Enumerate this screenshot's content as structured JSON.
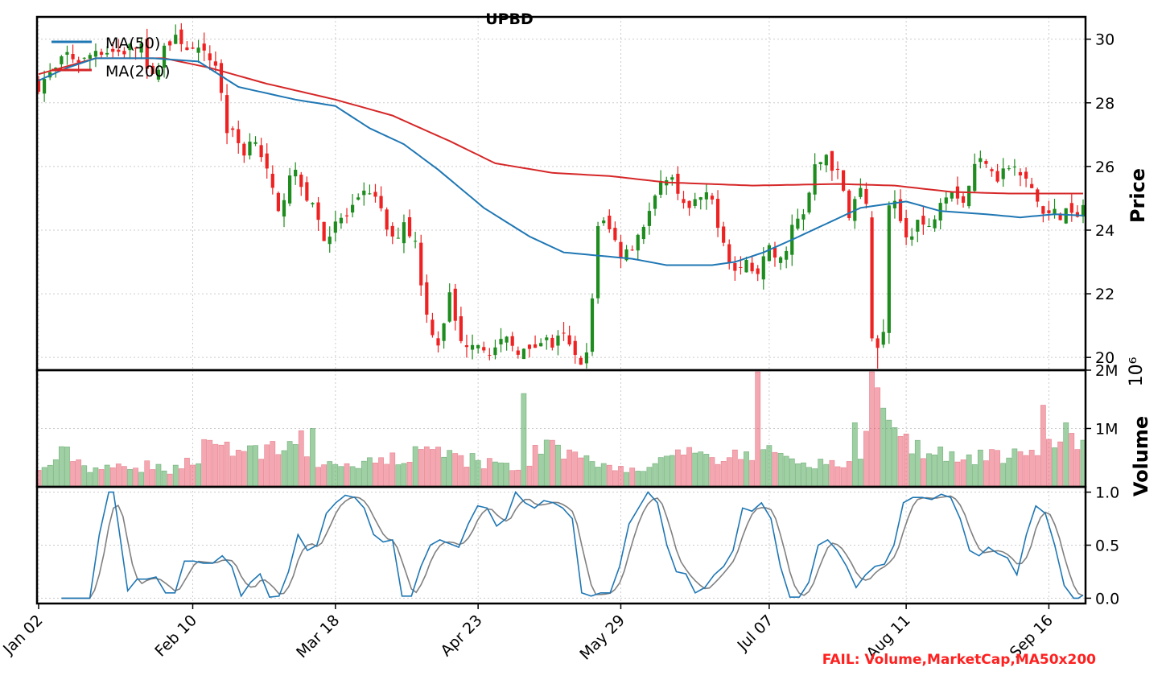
{
  "chart_data": {
    "type": "candlestick",
    "title": "UPBD",
    "ticker": "UPBD",
    "annotation": "FAIL: Volume,MarketCap,MA50x200",
    "x_tick_labels": [
      "Jan 02",
      "Feb 10",
      "Mar 18",
      "Apr 23",
      "May 29",
      "Jul 07",
      "Aug 11",
      "Sep 16"
    ],
    "x_tick_indices": [
      0,
      27,
      52,
      77,
      102,
      128,
      152,
      177
    ],
    "n_bars": 184,
    "legend": [
      {
        "label": "MA(50)",
        "color": "#1f77b4"
      },
      {
        "label": "MA(200)",
        "color": "#d62728"
      }
    ],
    "panels": {
      "price": {
        "ylabel": "Price",
        "ylim": [
          19.6,
          30.7
        ],
        "yticks": [
          20,
          22,
          24,
          26,
          28,
          30
        ],
        "ytick_labels": [
          "20",
          "22",
          "24",
          "26",
          "28",
          "30"
        ]
      },
      "volume": {
        "ylabel": "Volume",
        "ylim": [
          0,
          2.0
        ],
        "yticks": [
          1,
          2
        ],
        "ytick_labels": [
          "1M",
          "2M"
        ],
        "exponent_label": "10⁶"
      },
      "stochastic": {
        "ylim": [
          -0.05,
          1.05
        ],
        "yticks": [
          0.0,
          0.5,
          1.0
        ],
        "ytick_labels": [
          "0.0",
          "0.5",
          "1.0"
        ]
      }
    },
    "close_anchors": [
      [
        0,
        28.6
      ],
      [
        3,
        29.0
      ],
      [
        5,
        29.5
      ],
      [
        8,
        29.3
      ],
      [
        10,
        29.7
      ],
      [
        14,
        29.6
      ],
      [
        18,
        29.8
      ],
      [
        20,
        28.7
      ],
      [
        22,
        29.8
      ],
      [
        25,
        30.0
      ],
      [
        27,
        29.6
      ],
      [
        31,
        29.3
      ],
      [
        33,
        27.2
      ],
      [
        36,
        26.5
      ],
      [
        38,
        27.0
      ],
      [
        40,
        25.8
      ],
      [
        42,
        24.4
      ],
      [
        44,
        25.9
      ],
      [
        46,
        25.4
      ],
      [
        48,
        24.8
      ],
      [
        50,
        23.7
      ],
      [
        52,
        24.3
      ],
      [
        54,
        24.4
      ],
      [
        56,
        24.8
      ],
      [
        58,
        25.3
      ],
      [
        60,
        24.5
      ],
      [
        62,
        23.6
      ],
      [
        64,
        24.3
      ],
      [
        66,
        23.6
      ],
      [
        68,
        21.3
      ],
      [
        70,
        20.5
      ],
      [
        72,
        21.9
      ],
      [
        74,
        20.4
      ],
      [
        76,
        20.6
      ],
      [
        78,
        20.4
      ],
      [
        80,
        20.2
      ],
      [
        82,
        20.5
      ],
      [
        84,
        20.3
      ],
      [
        86,
        20.1
      ],
      [
        88,
        20.6
      ],
      [
        90,
        20.4
      ],
      [
        92,
        20.6
      ],
      [
        94,
        20.0
      ],
      [
        95,
        20.0
      ],
      [
        96,
        20.0
      ],
      [
        97,
        22.0
      ],
      [
        98,
        24.0
      ],
      [
        99,
        24.2
      ],
      [
        100,
        24.0
      ],
      [
        102,
        23.3
      ],
      [
        104,
        23.6
      ],
      [
        106,
        24.2
      ],
      [
        108,
        24.9
      ],
      [
        110,
        25.8
      ],
      [
        112,
        25.3
      ],
      [
        114,
        24.6
      ],
      [
        116,
        25.0
      ],
      [
        118,
        24.9
      ],
      [
        120,
        23.7
      ],
      [
        122,
        22.7
      ],
      [
        124,
        23.0
      ],
      [
        126,
        22.8
      ],
      [
        128,
        23.3
      ],
      [
        130,
        23.0
      ],
      [
        132,
        24.1
      ],
      [
        134,
        24.4
      ],
      [
        136,
        25.9
      ],
      [
        138,
        26.4
      ],
      [
        140,
        25.7
      ],
      [
        142,
        24.6
      ],
      [
        144,
        25.2
      ],
      [
        146,
        24.4
      ],
      [
        148,
        24.5
      ],
      [
        150,
        24.7
      ],
      [
        152,
        23.8
      ],
      [
        154,
        24.3
      ],
      [
        156,
        24.0
      ],
      [
        158,
        25.1
      ],
      [
        160,
        25.4
      ],
      [
        162,
        24.9
      ],
      [
        164,
        26.0
      ],
      [
        166,
        26.3
      ],
      [
        168,
        25.7
      ],
      [
        170,
        26.0
      ],
      [
        172,
        25.7
      ],
      [
        174,
        25.3
      ],
      [
        176,
        24.5
      ],
      [
        178,
        24.5
      ],
      [
        180,
        24.6
      ],
      [
        182,
        24.3
      ],
      [
        183,
        24.8
      ],
      [
        184,
        24.2
      ]
    ],
    "events": [
      {
        "i": 146,
        "o": 24.4,
        "c": 20.6,
        "h": 24.6,
        "l": 20.5
      },
      {
        "i": 147,
        "o": 20.6,
        "c": 20.3,
        "h": 20.7,
        "l": 19.6
      },
      {
        "i": 148,
        "o": 20.4,
        "c": 20.8,
        "h": 21.2,
        "l": 20.3
      }
    ],
    "ma50_anchors": [
      [
        0,
        28.7
      ],
      [
        5,
        29.1
      ],
      [
        10,
        29.4
      ],
      [
        20,
        29.4
      ],
      [
        28,
        29.3
      ],
      [
        35,
        28.5
      ],
      [
        45,
        28.1
      ],
      [
        52,
        27.9
      ],
      [
        58,
        27.2
      ],
      [
        64,
        26.7
      ],
      [
        70,
        25.9
      ],
      [
        78,
        24.7
      ],
      [
        86,
        23.8
      ],
      [
        92,
        23.3
      ],
      [
        98,
        23.2
      ],
      [
        104,
        23.1
      ],
      [
        110,
        22.9
      ],
      [
        118,
        22.9
      ],
      [
        122,
        23.0
      ],
      [
        127,
        23.3
      ],
      [
        132,
        23.7
      ],
      [
        138,
        24.2
      ],
      [
        144,
        24.7
      ],
      [
        152,
        24.9
      ],
      [
        158,
        24.6
      ],
      [
        166,
        24.5
      ],
      [
        172,
        24.4
      ],
      [
        178,
        24.5
      ],
      [
        184,
        24.45
      ]
    ],
    "ma200_anchors": [
      [
        0,
        28.9
      ],
      [
        10,
        29.4
      ],
      [
        22,
        29.4
      ],
      [
        30,
        29.1
      ],
      [
        40,
        28.6
      ],
      [
        52,
        28.1
      ],
      [
        62,
        27.6
      ],
      [
        72,
        26.8
      ],
      [
        80,
        26.1
      ],
      [
        90,
        25.8
      ],
      [
        100,
        25.7
      ],
      [
        110,
        25.5
      ],
      [
        125,
        25.4
      ],
      [
        140,
        25.45
      ],
      [
        150,
        25.4
      ],
      [
        160,
        25.2
      ],
      [
        170,
        25.15
      ],
      [
        184,
        25.15
      ]
    ],
    "volume_anchors": [
      [
        0,
        0.25
      ],
      [
        4,
        0.55
      ],
      [
        6,
        0.55
      ],
      [
        8,
        0.35
      ],
      [
        12,
        0.3
      ],
      [
        16,
        0.4
      ],
      [
        20,
        0.35
      ],
      [
        24,
        0.3
      ],
      [
        28,
        0.55
      ],
      [
        30,
        0.85
      ],
      [
        32,
        0.75
      ],
      [
        36,
        0.6
      ],
      [
        40,
        0.65
      ],
      [
        44,
        0.8
      ],
      [
        46,
        0.75
      ],
      [
        48,
        0.5
      ],
      [
        50,
        0.4
      ],
      [
        52,
        0.35
      ],
      [
        56,
        0.35
      ],
      [
        60,
        0.45
      ],
      [
        64,
        0.5
      ],
      [
        66,
        0.6
      ],
      [
        68,
        0.65
      ],
      [
        72,
        0.5
      ],
      [
        76,
        0.45
      ],
      [
        80,
        0.4
      ],
      [
        84,
        0.35
      ],
      [
        86,
        0.4
      ],
      [
        88,
        0.7
      ],
      [
        90,
        0.65
      ],
      [
        92,
        0.55
      ],
      [
        96,
        0.45
      ],
      [
        100,
        0.35
      ],
      [
        104,
        0.3
      ],
      [
        108,
        0.35
      ],
      [
        112,
        0.5
      ],
      [
        116,
        0.55
      ],
      [
        120,
        0.5
      ],
      [
        124,
        0.5
      ],
      [
        126,
        0.55
      ],
      [
        128,
        0.55
      ],
      [
        132,
        0.45
      ],
      [
        136,
        0.4
      ],
      [
        140,
        0.4
      ],
      [
        144,
        0.55
      ],
      [
        146,
        1.3
      ],
      [
        150,
        0.9
      ],
      [
        152,
        0.85
      ],
      [
        156,
        0.6
      ],
      [
        160,
        0.55
      ],
      [
        164,
        0.5
      ],
      [
        168,
        0.5
      ],
      [
        172,
        0.55
      ],
      [
        176,
        0.7
      ],
      [
        180,
        0.75
      ],
      [
        184,
        0.65
      ]
    ],
    "volume_spikes": [
      [
        18,
        0.25
      ],
      [
        48,
        1.0
      ],
      [
        85,
        1.6
      ],
      [
        126,
        2.0
      ],
      [
        143,
        1.1
      ],
      [
        146,
        2.1
      ],
      [
        147,
        1.7
      ],
      [
        176,
        1.4
      ],
      [
        180,
        1.1
      ],
      [
        183,
        0.8
      ]
    ],
    "stoch_k_anchors": [
      [
        0,
        0.0
      ],
      [
        6,
        0.0
      ],
      [
        8,
        0.6
      ],
      [
        10,
        1.0
      ],
      [
        11,
        1.0
      ],
      [
        12,
        0.7
      ],
      [
        14,
        0.07
      ],
      [
        16,
        0.18
      ],
      [
        18,
        0.18
      ],
      [
        20,
        0.2
      ],
      [
        22,
        0.05
      ],
      [
        24,
        0.05
      ],
      [
        26,
        0.35
      ],
      [
        28,
        0.35
      ],
      [
        30,
        0.33
      ],
      [
        32,
        0.33
      ],
      [
        34,
        0.4
      ],
      [
        36,
        0.3
      ],
      [
        38,
        0.02
      ],
      [
        40,
        0.15
      ],
      [
        42,
        0.23
      ],
      [
        44,
        0.01
      ],
      [
        46,
        0.02
      ],
      [
        48,
        0.25
      ],
      [
        50,
        0.6
      ],
      [
        52,
        0.45
      ],
      [
        54,
        0.5
      ],
      [
        56,
        0.8
      ],
      [
        58,
        0.9
      ],
      [
        60,
        0.97
      ],
      [
        62,
        0.95
      ],
      [
        64,
        0.85
      ],
      [
        66,
        0.6
      ],
      [
        68,
        0.53
      ],
      [
        70,
        0.55
      ],
      [
        72,
        0.02
      ],
      [
        74,
        0.02
      ],
      [
        76,
        0.3
      ],
      [
        78,
        0.5
      ],
      [
        80,
        0.55
      ],
      [
        84,
        0.48
      ],
      [
        86,
        0.7
      ],
      [
        88,
        0.87
      ],
      [
        90,
        0.85
      ],
      [
        92,
        0.68
      ],
      [
        94,
        0.75
      ],
      [
        96,
        1.0
      ],
      [
        98,
        0.9
      ],
      [
        100,
        0.85
      ],
      [
        102,
        0.92
      ],
      [
        104,
        0.9
      ],
      [
        106,
        0.85
      ],
      [
        108,
        0.75
      ],
      [
        110,
        0.05
      ],
      [
        112,
        0.02
      ],
      [
        114,
        0.05
      ],
      [
        116,
        0.05
      ],
      [
        118,
        0.3
      ],
      [
        120,
        0.7
      ],
      [
        122,
        0.85
      ],
      [
        124,
        1.0
      ],
      [
        126,
        0.9
      ],
      [
        128,
        0.5
      ],
      [
        130,
        0.25
      ],
      [
        132,
        0.23
      ],
      [
        134,
        0.05
      ],
      [
        136,
        0.1
      ],
      [
        138,
        0.22
      ],
      [
        140,
        0.3
      ],
      [
        142,
        0.45
      ],
      [
        144,
        0.85
      ],
      [
        146,
        0.82
      ],
      [
        148,
        0.9
      ],
      [
        150,
        0.75
      ],
      [
        152,
        0.3
      ],
      [
        154,
        0.01
      ],
      [
        156,
        0.01
      ],
      [
        158,
        0.15
      ],
      [
        160,
        0.5
      ],
      [
        162,
        0.55
      ],
      [
        164,
        0.45
      ],
      [
        166,
        0.3
      ],
      [
        168,
        0.1
      ],
      [
        170,
        0.22
      ],
      [
        172,
        0.3
      ],
      [
        174,
        0.32
      ],
      [
        176,
        0.5
      ],
      [
        178,
        0.9
      ],
      [
        180,
        0.95
      ],
      [
        182,
        0.95
      ],
      [
        184,
        0.93
      ]
    ],
    "stoch_tail": [
      [
        184,
        0.93
      ],
      [
        186,
        0.98
      ],
      [
        188,
        0.95
      ],
      [
        190,
        0.75
      ],
      [
        192,
        0.45
      ],
      [
        194,
        0.4
      ],
      [
        196,
        0.48
      ],
      [
        198,
        0.42
      ],
      [
        200,
        0.38
      ],
      [
        202,
        0.22
      ],
      [
        204,
        0.6
      ],
      [
        206,
        0.87
      ],
      [
        208,
        0.8
      ],
      [
        210,
        0.5
      ],
      [
        212,
        0.12
      ],
      [
        214,
        0.0
      ],
      [
        215,
        0.0
      ],
      [
        216,
        0.03
      ]
    ]
  }
}
